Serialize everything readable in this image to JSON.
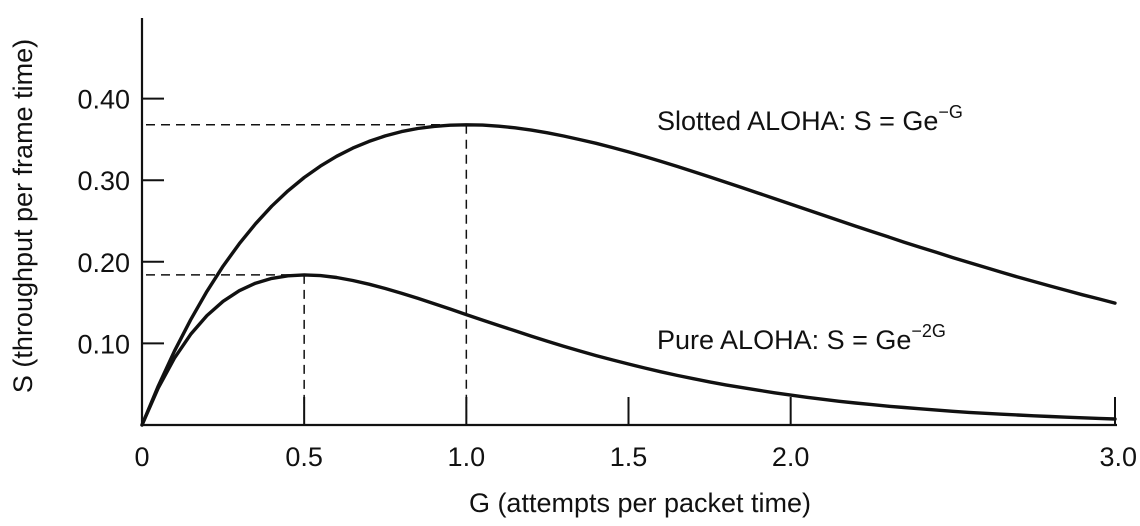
{
  "chart_data": {
    "type": "line",
    "title": "",
    "xlabel": "G (attempts per packet time)",
    "ylabel": "S (throughput per frame time)",
    "xlim": [
      0,
      3.0
    ],
    "ylim": [
      0,
      0.5
    ],
    "x_ticks": [
      {
        "value": 0,
        "label": "0"
      },
      {
        "value": 0.5,
        "label": "0.5"
      },
      {
        "value": 1.0,
        "label": "1.0"
      },
      {
        "value": 1.5,
        "label": "1.5"
      },
      {
        "value": 2.0,
        "label": "2.0"
      },
      {
        "value": 3.0,
        "label": "3.0"
      }
    ],
    "y_ticks": [
      {
        "value": 0.1,
        "label": "0.10"
      },
      {
        "value": 0.2,
        "label": "0.20"
      },
      {
        "value": 0.3,
        "label": "0.30"
      },
      {
        "value": 0.4,
        "label": "0.40"
      }
    ],
    "series": [
      {
        "name": "Slotted ALOHA",
        "formula": "S = Ge^-G",
        "label_main": "Slotted ALOHA: S = Ge",
        "label_sup": "−G",
        "x": [
          0,
          0.05,
          0.1,
          0.15,
          0.2,
          0.25,
          0.3,
          0.35,
          0.4,
          0.45,
          0.5,
          0.55,
          0.6,
          0.65,
          0.7,
          0.75,
          0.8,
          0.85,
          0.9,
          0.95,
          1.0,
          1.05,
          1.1,
          1.15,
          1.2,
          1.25,
          1.3,
          1.35,
          1.4,
          1.45,
          1.5,
          1.55,
          1.6,
          1.65,
          1.7,
          1.75,
          1.8,
          1.85,
          1.9,
          1.95,
          2.0,
          2.05,
          2.1,
          2.15,
          2.2,
          2.25,
          2.3,
          2.35,
          2.4,
          2.45,
          2.5,
          2.55,
          2.6,
          2.65,
          2.7,
          2.75,
          2.8,
          2.85,
          2.9,
          2.95,
          3.0
        ],
        "y": [
          0.0,
          0.0476,
          0.0905,
          0.1291,
          0.1637,
          0.1947,
          0.2222,
          0.2466,
          0.2681,
          0.2869,
          0.3033,
          0.3173,
          0.3293,
          0.3393,
          0.3476,
          0.3543,
          0.3595,
          0.3633,
          0.3659,
          0.3674,
          0.3679,
          0.3675,
          0.3662,
          0.3642,
          0.3614,
          0.3581,
          0.3542,
          0.3498,
          0.3452,
          0.3401,
          0.3347,
          0.3291,
          0.323,
          0.3169,
          0.3106,
          0.3041,
          0.2975,
          0.2909,
          0.2842,
          0.2775,
          0.2707,
          0.264,
          0.2572,
          0.2505,
          0.2438,
          0.2371,
          0.2306,
          0.224,
          0.2177,
          0.2115,
          0.2052,
          0.1991,
          0.1931,
          0.1872,
          0.1814,
          0.1758,
          0.1703,
          0.1649,
          0.1596,
          0.1545,
          0.1494
        ]
      },
      {
        "name": "Pure ALOHA",
        "formula": "S = Ge^-2G",
        "label_main": "Pure ALOHA: S = Ge",
        "label_sup": "−2G",
        "x": [
          0,
          0.05,
          0.1,
          0.15,
          0.2,
          0.25,
          0.3,
          0.35,
          0.4,
          0.45,
          0.5,
          0.55,
          0.6,
          0.65,
          0.7,
          0.75,
          0.8,
          0.85,
          0.9,
          0.95,
          1.0,
          1.05,
          1.1,
          1.15,
          1.2,
          1.25,
          1.3,
          1.35,
          1.4,
          1.45,
          1.5,
          1.55,
          1.6,
          1.65,
          1.7,
          1.75,
          1.8,
          1.85,
          1.9,
          1.95,
          2.0,
          2.05,
          2.1,
          2.15,
          2.2,
          2.25,
          2.3,
          2.35,
          2.4,
          2.45,
          2.5,
          2.55,
          2.6,
          2.65,
          2.7,
          2.75,
          2.8,
          2.85,
          2.9,
          2.95,
          3.0
        ],
        "y": [
          0.0,
          0.0452,
          0.0819,
          0.1111,
          0.1341,
          0.1516,
          0.1646,
          0.1738,
          0.1797,
          0.1829,
          0.1839,
          0.1831,
          0.1807,
          0.1771,
          0.1726,
          0.1673,
          0.1615,
          0.1553,
          0.1488,
          0.1421,
          0.1353,
          0.1286,
          0.1219,
          0.1154,
          0.1089,
          0.1026,
          0.0966,
          0.0907,
          0.0851,
          0.0798,
          0.0747,
          0.0698,
          0.0652,
          0.0608,
          0.0567,
          0.0528,
          0.0492,
          0.0458,
          0.0426,
          0.0395,
          0.0366,
          0.034,
          0.0315,
          0.0291,
          0.027,
          0.025,
          0.0231,
          0.0214,
          0.0198,
          0.0182,
          0.0168,
          0.0155,
          0.0143,
          0.0132,
          0.0122,
          0.0113,
          0.0104,
          0.0096,
          0.0088,
          0.0081,
          0.0074
        ]
      }
    ],
    "reference_lines": [
      {
        "name": "slotted-peak",
        "x": 1.0,
        "y": 0.368
      },
      {
        "name": "pure-peak",
        "x": 0.5,
        "y": 0.184
      }
    ]
  }
}
